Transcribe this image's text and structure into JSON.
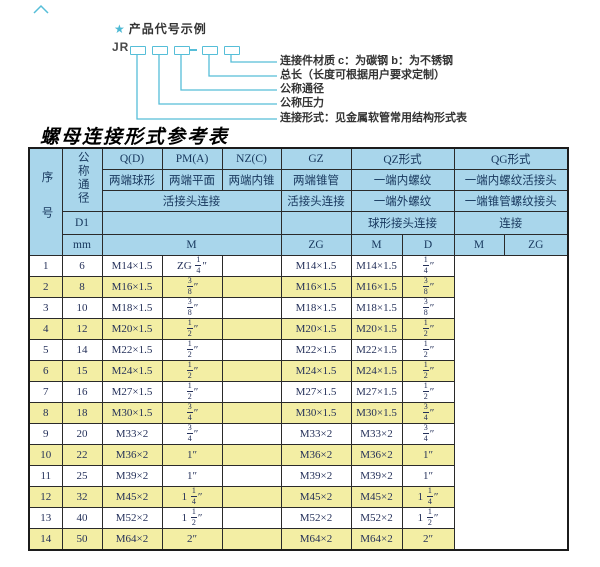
{
  "diagram": {
    "bullet": "★",
    "title": "产品代号示例",
    "prefix": "JR",
    "dash": "-",
    "labels": [
      "连接件材质  c：为碳钢  b：为不锈钢",
      "总长（长度可根据用户要求定制）",
      "公称通径",
      "公称压力",
      "连接形式：见金属软管常用结构形式表"
    ]
  },
  "table_title": "螺母连接形式参考表",
  "table": {
    "header": {
      "index": "序号",
      "nominal_diameter": "公称通径",
      "d1": "D1",
      "mm": "mm",
      "qd": "Q(D)",
      "pma": "PM(A)",
      "nzc": "NZ(C)",
      "gz": "GZ",
      "qz": "QZ形式",
      "qg": "QG形式",
      "qd_desc": "两端球形",
      "pma_desc": "两端平面",
      "nzc_desc": "两端内锥",
      "gz_desc": "两端锥管",
      "qz_desc1": "一端内螺纹",
      "qg_desc1": "一端内螺纹活接头",
      "union_conn": "活接头连接",
      "gz_conn": "活接头连接",
      "qz_desc2": "一端外螺纹",
      "qg_desc2": "一端锥管螺纹接头",
      "qz_conn": "球形接头连接",
      "qg_conn": "连接",
      "m": "M",
      "zg": "ZG",
      "qz_m": "M",
      "qz_d": "D",
      "qg_m": "M",
      "qg_zg": "ZG"
    },
    "columns": [
      "no",
      "dn",
      "m",
      "gz-zg",
      "qz-m",
      "qz-d",
      "qg-m",
      "qg-zg"
    ],
    "rows": [
      [
        "1",
        "6",
        "M14×1.5",
        "ZG 1/4″",
        "",
        "M14×1.5",
        "M14×1.5",
        "1/4″"
      ],
      [
        "2",
        "8",
        "M16×1.5",
        "3/8″",
        "",
        "M16×1.5",
        "M16×1.5",
        "3/8″"
      ],
      [
        "3",
        "10",
        "M18×1.5",
        "3/8″",
        "",
        "M18×1.5",
        "M18×1.5",
        "3/8″"
      ],
      [
        "4",
        "12",
        "M20×1.5",
        "1/2″",
        "",
        "M20×1.5",
        "M20×1.5",
        "1/2″"
      ],
      [
        "5",
        "14",
        "M22×1.5",
        "1/2″",
        "",
        "M22×1.5",
        "M22×1.5",
        "1/2″"
      ],
      [
        "6",
        "15",
        "M24×1.5",
        "1/2″",
        "",
        "M24×1.5",
        "M24×1.5",
        "1/2″"
      ],
      [
        "7",
        "16",
        "M27×1.5",
        "1/2″",
        "",
        "M27×1.5",
        "M27×1.5",
        "1/2″"
      ],
      [
        "8",
        "18",
        "M30×1.5",
        "3/4″",
        "",
        "M30×1.5",
        "M30×1.5",
        "3/4″"
      ],
      [
        "9",
        "20",
        "M33×2",
        "3/4″",
        "",
        "M33×2",
        "M33×2",
        "3/4″"
      ],
      [
        "10",
        "22",
        "M36×2",
        "1″",
        "",
        "M36×2",
        "M36×2",
        "1″"
      ],
      [
        "11",
        "25",
        "M39×2",
        "1″",
        "",
        "M39×2",
        "M39×2",
        "1″"
      ],
      [
        "12",
        "32",
        "M45×2",
        "1 1/4″",
        "",
        "M45×2",
        "M45×2",
        "1 1/4″"
      ],
      [
        "13",
        "40",
        "M52×2",
        "1 1/2″",
        "",
        "M52×2",
        "M52×2",
        "1 1/2″"
      ],
      [
        "14",
        "50",
        "M64×2",
        "2″",
        "",
        "M64×2",
        "M64×2",
        "2″"
      ]
    ]
  },
  "colors": {
    "accent_teal": "#56bed8",
    "header_blue": "#a9d6eb",
    "row_yellow": "#f3eea4",
    "border": "#222222"
  }
}
